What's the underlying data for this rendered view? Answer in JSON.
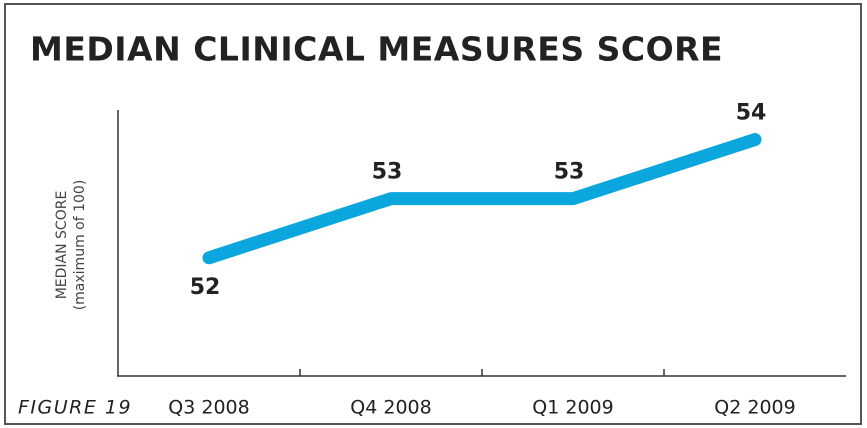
{
  "chart_data": {
    "type": "line",
    "title": "MEDIAN CLINICAL MEASURES SCORE",
    "y_label": "MEDIAN SCORE",
    "y_sublabel": "(maximum of 100)",
    "caption": "FIGURE 19",
    "categories": [
      "Q3 2008",
      "Q4 2008",
      "Q1 2009",
      "Q2 2009"
    ],
    "values": [
      52,
      53,
      53,
      54
    ],
    "color": "#0ba6dd",
    "ylim": [
      50,
      54.5
    ]
  }
}
